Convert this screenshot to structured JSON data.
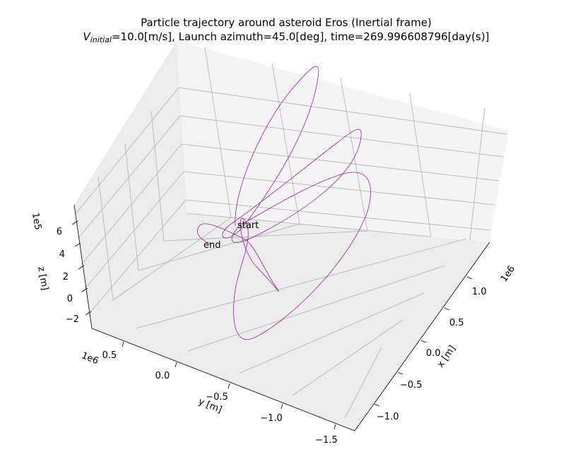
{
  "chart_data": {
    "type": "line",
    "projection": "3d",
    "title_line1": "Particle trajectory around asteroid Eros (Inertial frame)",
    "title_line2_prefix": "V",
    "title_line2_sub": "initial",
    "title_line2_rest": "=10.0[m/s], Launch azimuth=45.0[deg], time=269.996608796[day(s)]",
    "xlabel": "x [m]",
    "ylabel": "y [m]",
    "zlabel": "z [m]",
    "x_offset_label": "1e6",
    "y_offset_label": "1e6",
    "z_offset_label": "1e5",
    "x_ticks": [
      "−1.0",
      "−0.5",
      "0.0",
      "0.5",
      "1.0"
    ],
    "y_ticks": [
      "0.5",
      "0.0",
      "−0.5",
      "−1.0",
      "−1.5"
    ],
    "z_ticks": [
      "−2",
      "0",
      "2",
      "4",
      "6"
    ],
    "series_color": "#9c1fa3",
    "pane_color": "#f2f2f2",
    "grid": true,
    "annotations": [
      {
        "text": "start"
      },
      {
        "text": "end"
      }
    ]
  }
}
